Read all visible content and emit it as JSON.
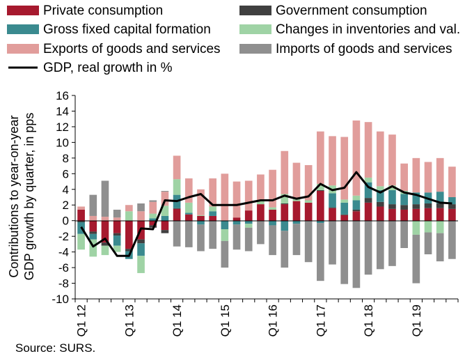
{
  "chart_data": {
    "type": "bar",
    "subtype": "stacked-bar-with-line",
    "title": "",
    "ylabel": "Contributions to year-on-year GDP growth by quarter, in pps",
    "xlabel": "",
    "ylim": [
      -10,
      16
    ],
    "yticks": [
      -10,
      -8,
      -6,
      -4,
      -2,
      0,
      2,
      4,
      6,
      8,
      10,
      12,
      14,
      16
    ],
    "legend_position": "top",
    "categories": [
      "Q1 12",
      "Q2 12",
      "Q3 12",
      "Q4 12",
      "Q1 13",
      "Q2 13",
      "Q3 13",
      "Q4 13",
      "Q1 14",
      "Q2 14",
      "Q3 14",
      "Q4 14",
      "Q1 15",
      "Q2 15",
      "Q3 15",
      "Q4 15",
      "Q1 16",
      "Q2 16",
      "Q3 16",
      "Q4 16",
      "Q1 17",
      "Q2 17",
      "Q3 17",
      "Q4 17",
      "Q1 18",
      "Q2 18",
      "Q3 18",
      "Q4 18",
      "Q1 19",
      "Q2 19",
      "Q3 19",
      "Q4 19"
    ],
    "tick_labels": [
      "Q1 12",
      "Q1 13",
      "Q1 14",
      "Q1 15",
      "Q1 16",
      "Q1 17",
      "Q1 18",
      "Q1 19"
    ],
    "series": [
      {
        "name": "Private consumption",
        "kind": "bar",
        "color": "#a6192e",
        "values": [
          1.4,
          -1.4,
          -2.8,
          -1.6,
          -3.6,
          -2.4,
          -0.6,
          -1.2,
          1.5,
          0.8,
          0.6,
          0.6,
          0.0,
          0.4,
          1.3,
          2.1,
          1.4,
          2.1,
          2.5,
          2.3,
          3.8,
          1.6,
          0.7,
          1.2,
          2.3,
          1.8,
          1.5,
          1.4,
          1.5,
          1.6,
          1.6,
          1.5
        ]
      },
      {
        "name": "Government consumption",
        "kind": "bar",
        "color": "#404040",
        "values": [
          -0.2,
          -0.3,
          -0.4,
          -0.3,
          -0.3,
          -0.5,
          -0.3,
          -0.4,
          0.1,
          0.0,
          0.0,
          0.0,
          0.0,
          0.0,
          0.0,
          0.0,
          0.0,
          0.1,
          0.0,
          0.0,
          0.1,
          0.1,
          0.1,
          0.2,
          0.6,
          0.6,
          0.6,
          0.6,
          0.6,
          0.6,
          0.6,
          0.6
        ]
      },
      {
        "name": "Gross fixed capital formation",
        "kind": "bar",
        "color": "#3a8a8f",
        "values": [
          -1.5,
          -0.7,
          0.0,
          -1.3,
          -1.0,
          -1.6,
          0.3,
          0.6,
          1.7,
          0.2,
          -0.5,
          0.6,
          -1.1,
          -0.5,
          -0.4,
          0.0,
          -0.6,
          -1.3,
          -0.4,
          0.0,
          -0.3,
          1.8,
          1.5,
          1.2,
          2.0,
          1.5,
          1.8,
          1.4,
          1.5,
          1.4,
          1.5,
          0.9
        ]
      },
      {
        "name": "Changes in inventories and val.",
        "kind": "bar",
        "color": "#9fd3a5",
        "values": [
          -2.0,
          -2.2,
          -1.2,
          -0.8,
          1.2,
          -2.2,
          0.6,
          1.3,
          2.0,
          1.3,
          0.1,
          0.6,
          -1.5,
          0.0,
          -0.5,
          0.5,
          0.3,
          1.2,
          0.4,
          0.3,
          0.8,
          1.0,
          0.4,
          0.6,
          0.6,
          0.5,
          0.6,
          0.4,
          -1.8,
          -1.5,
          -1.6,
          0.0
        ]
      },
      {
        "name": "Exports of goods and services",
        "kind": "bar",
        "color": "#e19d9b",
        "values": [
          0.4,
          0.6,
          0.5,
          0.4,
          0.8,
          1.2,
          1.5,
          1.8,
          3.0,
          3.1,
          3.3,
          3.6,
          6.0,
          4.6,
          3.8,
          3.3,
          4.8,
          5.5,
          4.5,
          4.5,
          6.7,
          6.3,
          8.0,
          9.6,
          7.1,
          7.0,
          6.5,
          3.5,
          4.4,
          3.9,
          4.3,
          3.9
        ]
      },
      {
        "name": "Imports of goods and services",
        "kind": "bar",
        "color": "#8f8f8f",
        "values": [
          0.0,
          2.7,
          4.6,
          1.0,
          0.0,
          1.0,
          0.2,
          0.1,
          -3.3,
          -3.4,
          -3.4,
          -3.6,
          -3.4,
          -3.2,
          -3.0,
          -3.0,
          -3.8,
          -4.7,
          -4.0,
          -5.3,
          -7.4,
          -5.6,
          -8.1,
          -8.6,
          -6.9,
          -6.2,
          -5.8,
          -3.5,
          -6.2,
          -2.8,
          -3.6,
          -4.9
        ]
      },
      {
        "name": "GDP, real growth in %",
        "kind": "line",
        "color": "#000000",
        "values": [
          -0.8,
          -3.3,
          -2.3,
          -4.5,
          -4.5,
          -1.0,
          -1.1,
          2.6,
          2.5,
          3.0,
          3.4,
          2.0,
          2.0,
          2.0,
          2.3,
          2.6,
          2.6,
          3.2,
          2.8,
          3.1,
          4.7,
          3.9,
          4.2,
          6.2,
          4.3,
          3.6,
          4.4,
          3.6,
          3.3,
          2.8,
          2.3,
          2.2
        ]
      }
    ]
  },
  "source": "Source: SURS."
}
